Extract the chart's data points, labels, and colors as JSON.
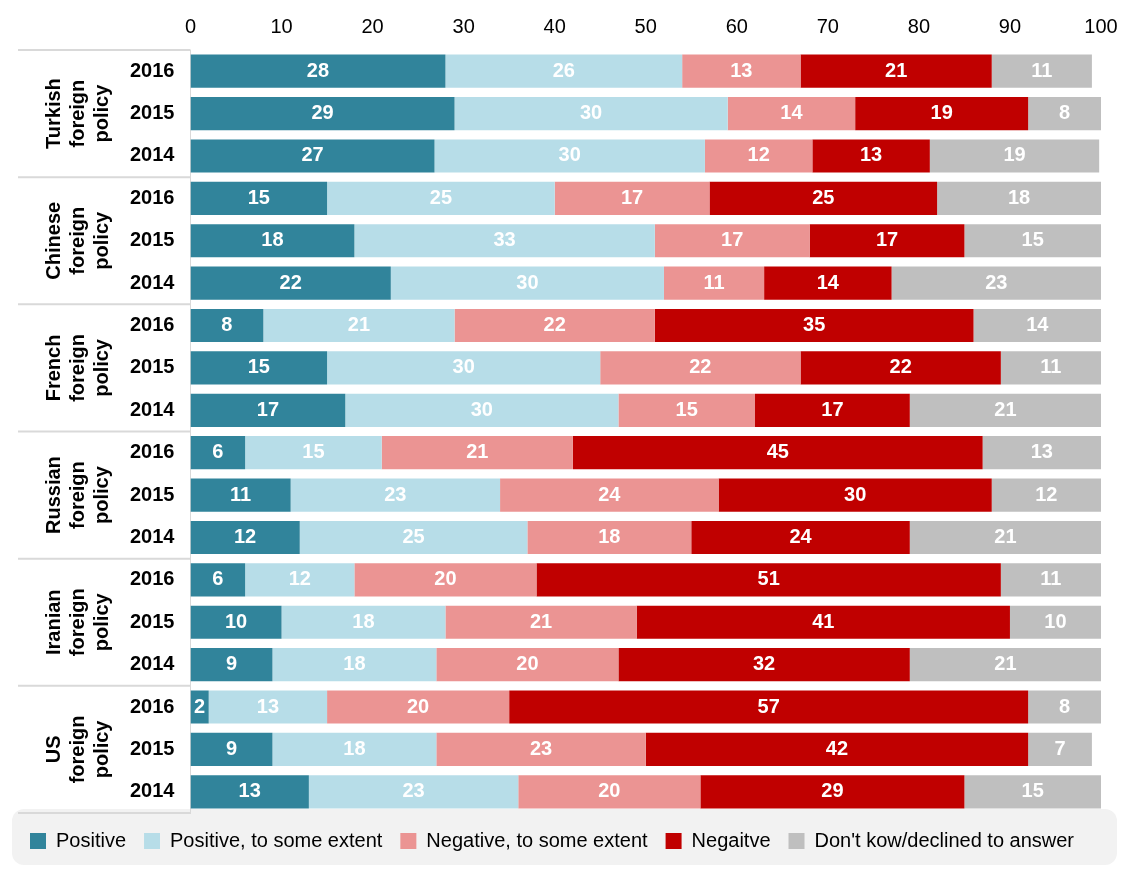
{
  "chart_data": {
    "type": "bar",
    "orientation": "horizontal",
    "stacked": true,
    "categories": [
      "2016",
      "2015",
      "2014",
      "2016",
      "2015",
      "2014",
      "2016",
      "2015",
      "2014",
      "2016",
      "2015",
      "2014",
      "2016",
      "2015",
      "2014",
      "2016",
      "2015",
      "2014"
    ],
    "annotations": [
      "Turkish foreign policy",
      "Chinese foreign policy",
      "French foreign policy",
      "Russian foreign policy",
      "Iranian foreign policy",
      "US foreign policy"
    ],
    "series": [
      {
        "name": "Positive",
        "color": "#31849b",
        "values": [
          28,
          29,
          26.8,
          15,
          18,
          22,
          8,
          15,
          17,
          6,
          11,
          12,
          6,
          10,
          9,
          2,
          9,
          13
        ],
        "value_labels": [
          "28",
          "29",
          "27",
          "15",
          "18",
          "22",
          "8",
          "15",
          "17",
          "6",
          "11",
          "12",
          "6",
          "10",
          "9",
          "2",
          "9",
          "13"
        ]
      },
      {
        "name": "Positive, to some extent",
        "color": "#b7dde8",
        "values": [
          26,
          30,
          29.7,
          25,
          33,
          30,
          21,
          30,
          30,
          15,
          23,
          25,
          12,
          18,
          18,
          13,
          18,
          23
        ],
        "value_labels": [
          "26",
          "30",
          "30",
          "25",
          "33",
          "30",
          "21",
          "30",
          "30",
          "15",
          "23",
          "25",
          "12",
          "18",
          "18",
          "13",
          "18",
          "23"
        ]
      },
      {
        "name": "Negative, to some extent",
        "color": "#eb9493",
        "values": [
          13,
          14,
          11.8,
          17,
          17,
          11,
          22,
          22,
          15,
          21,
          24,
          18,
          20,
          21,
          20,
          20,
          23,
          20
        ],
        "value_labels": [
          "13",
          "14",
          "12",
          "17",
          "17",
          "11",
          "22",
          "22",
          "15",
          "21",
          "24",
          "18",
          "20",
          "21",
          "20",
          "20",
          "23",
          "20"
        ]
      },
      {
        "name": "Negaitve",
        "color": "#c00000",
        "values": [
          21,
          19,
          12.9,
          25,
          17,
          14,
          35,
          22,
          17,
          45,
          30,
          24,
          51,
          41,
          32,
          57,
          42,
          29
        ],
        "value_labels": [
          "21",
          "19",
          "13",
          "25",
          "17",
          "14",
          "35",
          "22",
          "17",
          "45",
          "30",
          "24",
          "51",
          "41",
          "32",
          "57",
          "42",
          "29"
        ]
      },
      {
        "name": "Don't kow/declined to answer",
        "color": "#bfbfbf",
        "values": [
          11,
          8,
          18.6,
          18,
          15,
          23,
          14,
          11,
          21,
          13,
          12,
          21,
          11,
          10,
          21,
          8,
          7,
          15
        ],
        "value_labels": [
          "11",
          "8",
          "19",
          "18",
          "15",
          "23",
          "14",
          "11",
          "21",
          "13",
          "12",
          "21",
          "11",
          "10",
          "21",
          "8",
          "7",
          "15"
        ]
      }
    ],
    "xlim": [
      0,
      100
    ],
    "xticks": [
      0,
      10,
      20,
      30,
      40,
      50,
      60,
      70,
      80,
      90,
      100
    ],
    "legend": "bottom",
    "grid": false
  }
}
